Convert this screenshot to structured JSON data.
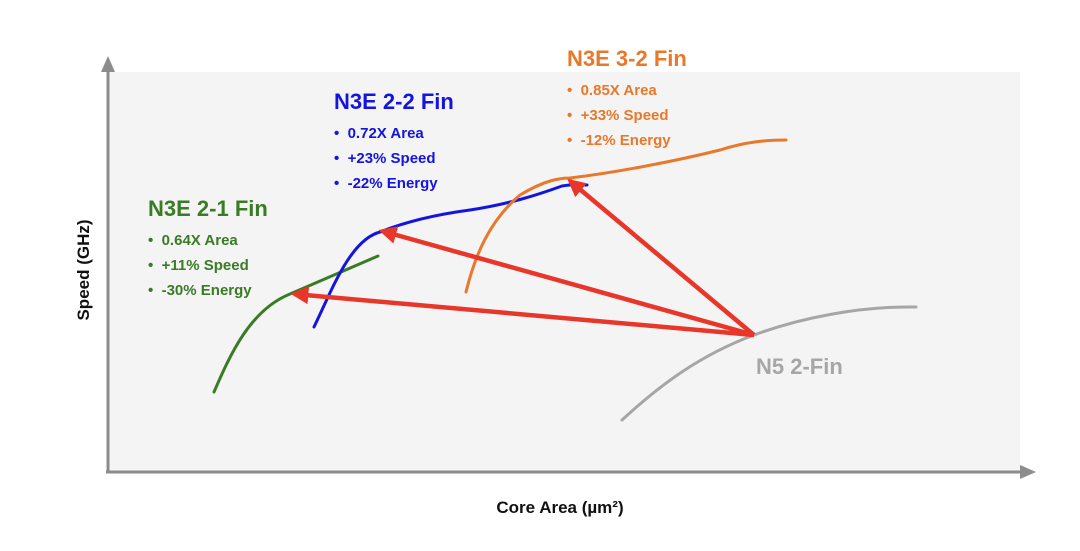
{
  "axes": {
    "x_label": "Core Area (µm²)",
    "y_label": "Speed (GHz)",
    "axis_color": "#8c8c8c",
    "plot_bg": "#f4f4f4"
  },
  "arrow_color": "#e8362a",
  "nodes": [
    {
      "id": "n3e-2-1",
      "title": "N3E 2-1 Fin",
      "color": "#3a7b25",
      "bullets": [
        "0.64X Area",
        "+11% Speed",
        "-30% Energy"
      ]
    },
    {
      "id": "n3e-2-2",
      "title": "N3E 2-2 Fin",
      "color": "#1414e0",
      "bullets": [
        "0.72X Area",
        "+23% Speed",
        "-22% Energy"
      ]
    },
    {
      "id": "n3e-3-2",
      "title": "N3E 3-2 Fin",
      "color": "#e8782a",
      "bullets": [
        "0.85X Area",
        "+33% Speed",
        "-12% Energy"
      ]
    },
    {
      "id": "n5-2",
      "title": "N5 2-Fin",
      "color": "#a6a6a6",
      "bullets": []
    }
  ]
}
